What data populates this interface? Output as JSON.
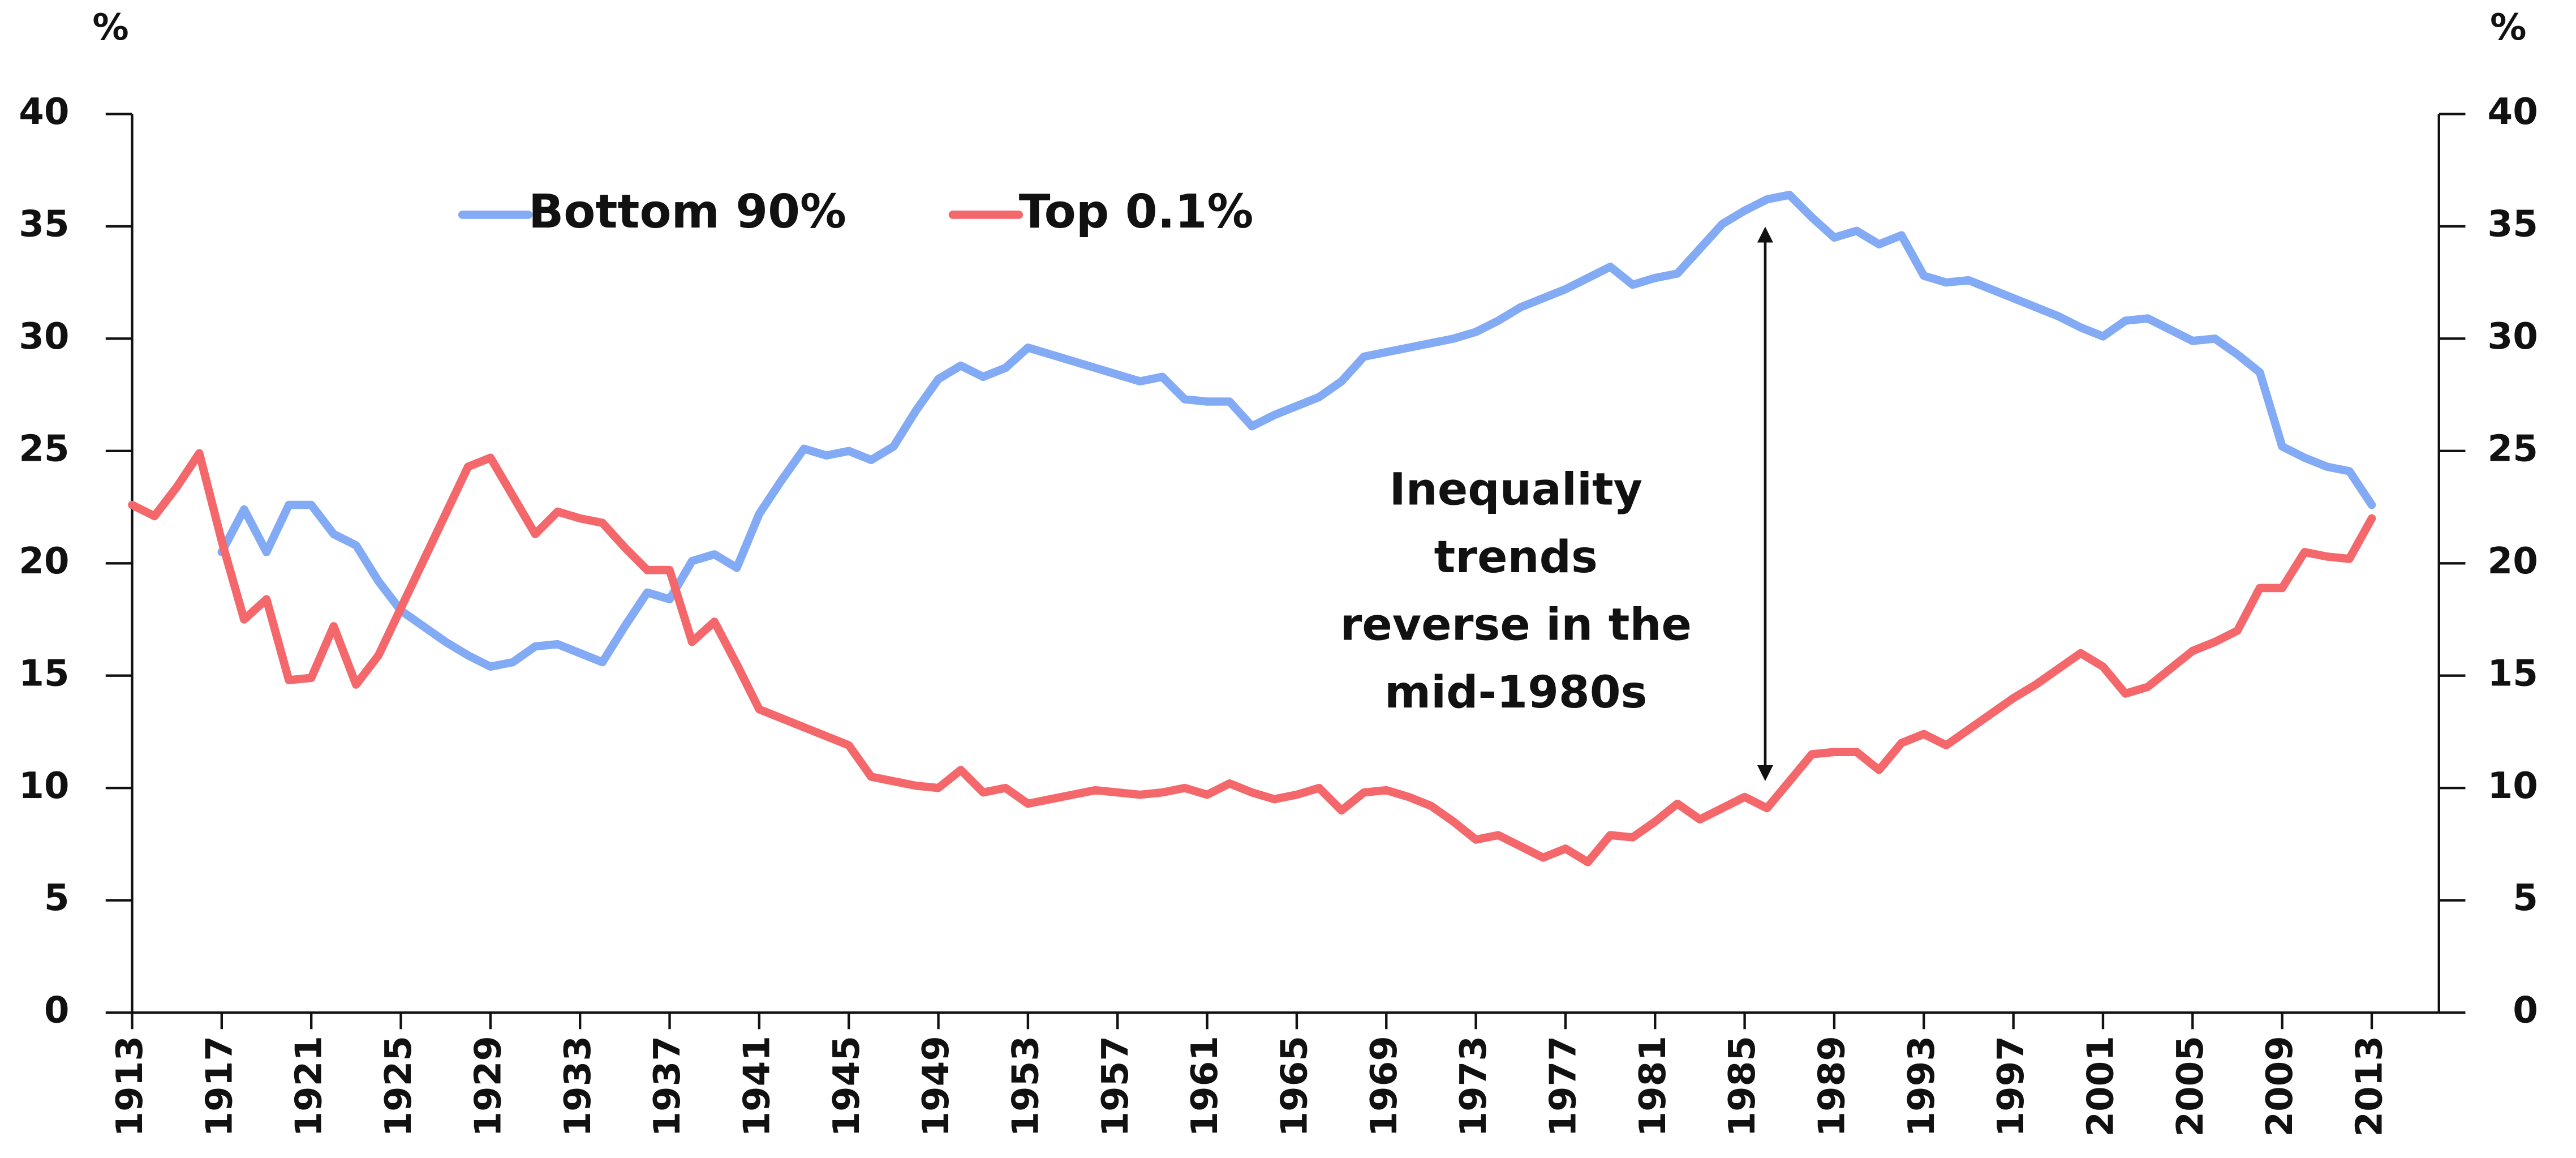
{
  "chart_data": {
    "type": "line",
    "ylabel": "%",
    "y2label": "%",
    "annotation": [
      "Inequality",
      "trends",
      "reverse in the",
      "mid-1980s"
    ],
    "x": [
      1913,
      1914,
      1915,
      1916,
      1917,
      1918,
      1919,
      1920,
      1921,
      1922,
      1923,
      1924,
      1925,
      1926,
      1927,
      1928,
      1929,
      1930,
      1931,
      1932,
      1933,
      1934,
      1935,
      1936,
      1937,
      1938,
      1939,
      1940,
      1941,
      1942,
      1943,
      1944,
      1945,
      1946,
      1947,
      1948,
      1949,
      1950,
      1951,
      1952,
      1953,
      1954,
      1955,
      1956,
      1957,
      1958,
      1959,
      1960,
      1961,
      1962,
      1963,
      1964,
      1965,
      1966,
      1967,
      1968,
      1969,
      1970,
      1971,
      1972,
      1973,
      1974,
      1975,
      1976,
      1977,
      1978,
      1979,
      1980,
      1981,
      1982,
      1983,
      1984,
      1985,
      1986,
      1987,
      1988,
      1989,
      1990,
      1991,
      1992,
      1993,
      1994,
      1995,
      1996,
      1997,
      1998,
      1999,
      2000,
      2001,
      2002,
      2003,
      2004,
      2005,
      2006,
      2007,
      2008,
      2009,
      2010,
      2011,
      2012,
      2013
    ],
    "series": [
      {
        "name": "Bottom 90%",
        "color": "#82aaf5",
        "values": [
          null,
          null,
          null,
          null,
          20.5,
          22.4,
          20.5,
          22.6,
          22.6,
          21.3,
          20.8,
          19.2,
          17.9,
          17.2,
          16.5,
          15.9,
          15.4,
          15.6,
          16.3,
          16.4,
          16.0,
          15.6,
          17.2,
          18.7,
          18.4,
          20.1,
          20.4,
          19.8,
          22.2,
          23.7,
          25.1,
          24.8,
          25.0,
          24.6,
          25.2,
          26.8,
          28.2,
          28.8,
          28.3,
          28.7,
          29.6,
          29.3,
          29.0,
          28.7,
          28.4,
          28.1,
          28.3,
          27.3,
          27.2,
          27.2,
          26.1,
          26.6,
          27.0,
          27.4,
          28.1,
          29.2,
          29.4,
          29.6,
          29.8,
          30.0,
          30.3,
          30.8,
          31.4,
          31.8,
          32.2,
          32.7,
          33.2,
          32.4,
          32.7,
          32.9,
          34.0,
          35.1,
          35.7,
          36.2,
          36.4,
          35.4,
          34.5,
          34.8,
          34.2,
          34.6,
          32.8,
          32.5,
          32.6,
          32.2,
          31.8,
          31.4,
          31.0,
          30.5,
          30.1,
          30.8,
          30.9,
          30.4,
          29.9,
          30.0,
          29.3,
          28.5,
          25.2,
          24.7,
          24.3,
          24.1,
          22.6
        ]
      },
      {
        "name": "Top 0.1%",
        "color": "#f4676b",
        "values": [
          22.6,
          22.1,
          23.4,
          24.9,
          21.0,
          17.5,
          18.4,
          14.8,
          14.9,
          17.2,
          14.6,
          15.9,
          18.0,
          20.1,
          22.2,
          24.3,
          24.7,
          23.0,
          21.3,
          22.3,
          22.0,
          21.8,
          20.7,
          19.7,
          19.7,
          16.5,
          17.4,
          15.5,
          13.5,
          13.1,
          12.7,
          12.3,
          11.9,
          10.5,
          10.3,
          10.1,
          10.0,
          10.8,
          9.8,
          10.0,
          9.3,
          9.5,
          9.7,
          9.9,
          9.8,
          9.7,
          9.8,
          10.0,
          9.7,
          10.2,
          9.8,
          9.5,
          9.7,
          10.0,
          9.0,
          9.8,
          9.9,
          9.6,
          9.2,
          8.5,
          7.7,
          7.9,
          7.4,
          6.9,
          7.3,
          6.7,
          7.9,
          7.8,
          8.5,
          9.3,
          8.6,
          9.1,
          9.6,
          9.1,
          10.3,
          11.5,
          11.6,
          11.6,
          10.8,
          12.0,
          12.4,
          11.9,
          12.6,
          13.3,
          14.0,
          14.6,
          15.3,
          16.0,
          15.4,
          14.2,
          14.5,
          15.3,
          16.1,
          16.5,
          17.0,
          18.9,
          18.9,
          20.5,
          20.3,
          20.2,
          22.0
        ]
      }
    ],
    "xlim": [
      1913,
      2016
    ],
    "xticks": [
      1913,
      1917,
      1921,
      1925,
      1929,
      1933,
      1937,
      1941,
      1945,
      1949,
      1953,
      1957,
      1961,
      1965,
      1969,
      1973,
      1977,
      1981,
      1985,
      1989,
      1993,
      1997,
      2001,
      2005,
      2009,
      2013
    ],
    "ylim": [
      0,
      40
    ],
    "yticks": [
      0,
      5,
      10,
      15,
      20,
      25,
      30,
      35,
      40
    ],
    "y2lim": [
      0,
      40
    ],
    "y2ticks": [
      0,
      5,
      10,
      15,
      20,
      25,
      30,
      35,
      40
    ],
    "grid": false,
    "legend": "top-left"
  }
}
